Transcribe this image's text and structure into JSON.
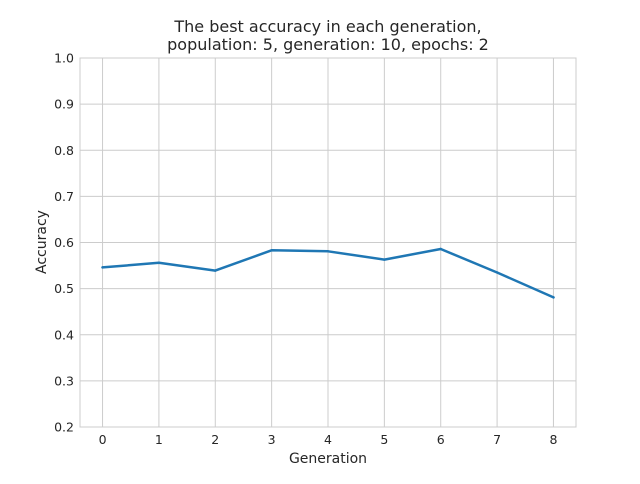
{
  "chart_data": {
    "type": "line",
    "title_lines": [
      "The best accuracy in each generation,",
      "population: 5, generation: 10, epochs: 2"
    ],
    "xlabel": "Generation",
    "ylabel": "Accuracy",
    "x": [
      0,
      1,
      2,
      3,
      4,
      5,
      6,
      7,
      8
    ],
    "x_ticks": [
      "0",
      "1",
      "2",
      "3",
      "4",
      "5",
      "6",
      "7",
      "8"
    ],
    "y_ticks": [
      "0.2",
      "0.3",
      "0.4",
      "0.5",
      "0.6",
      "0.7",
      "0.8",
      "0.9",
      "1.0"
    ],
    "xlim": [
      -0.4,
      8.4
    ],
    "ylim": [
      0.2,
      1.0
    ],
    "grid": true,
    "series": [
      {
        "values": [
          0.546,
          0.556,
          0.539,
          0.583,
          0.581,
          0.563,
          0.586,
          0.535,
          0.481
        ],
        "color": "#1f77b4"
      }
    ]
  }
}
